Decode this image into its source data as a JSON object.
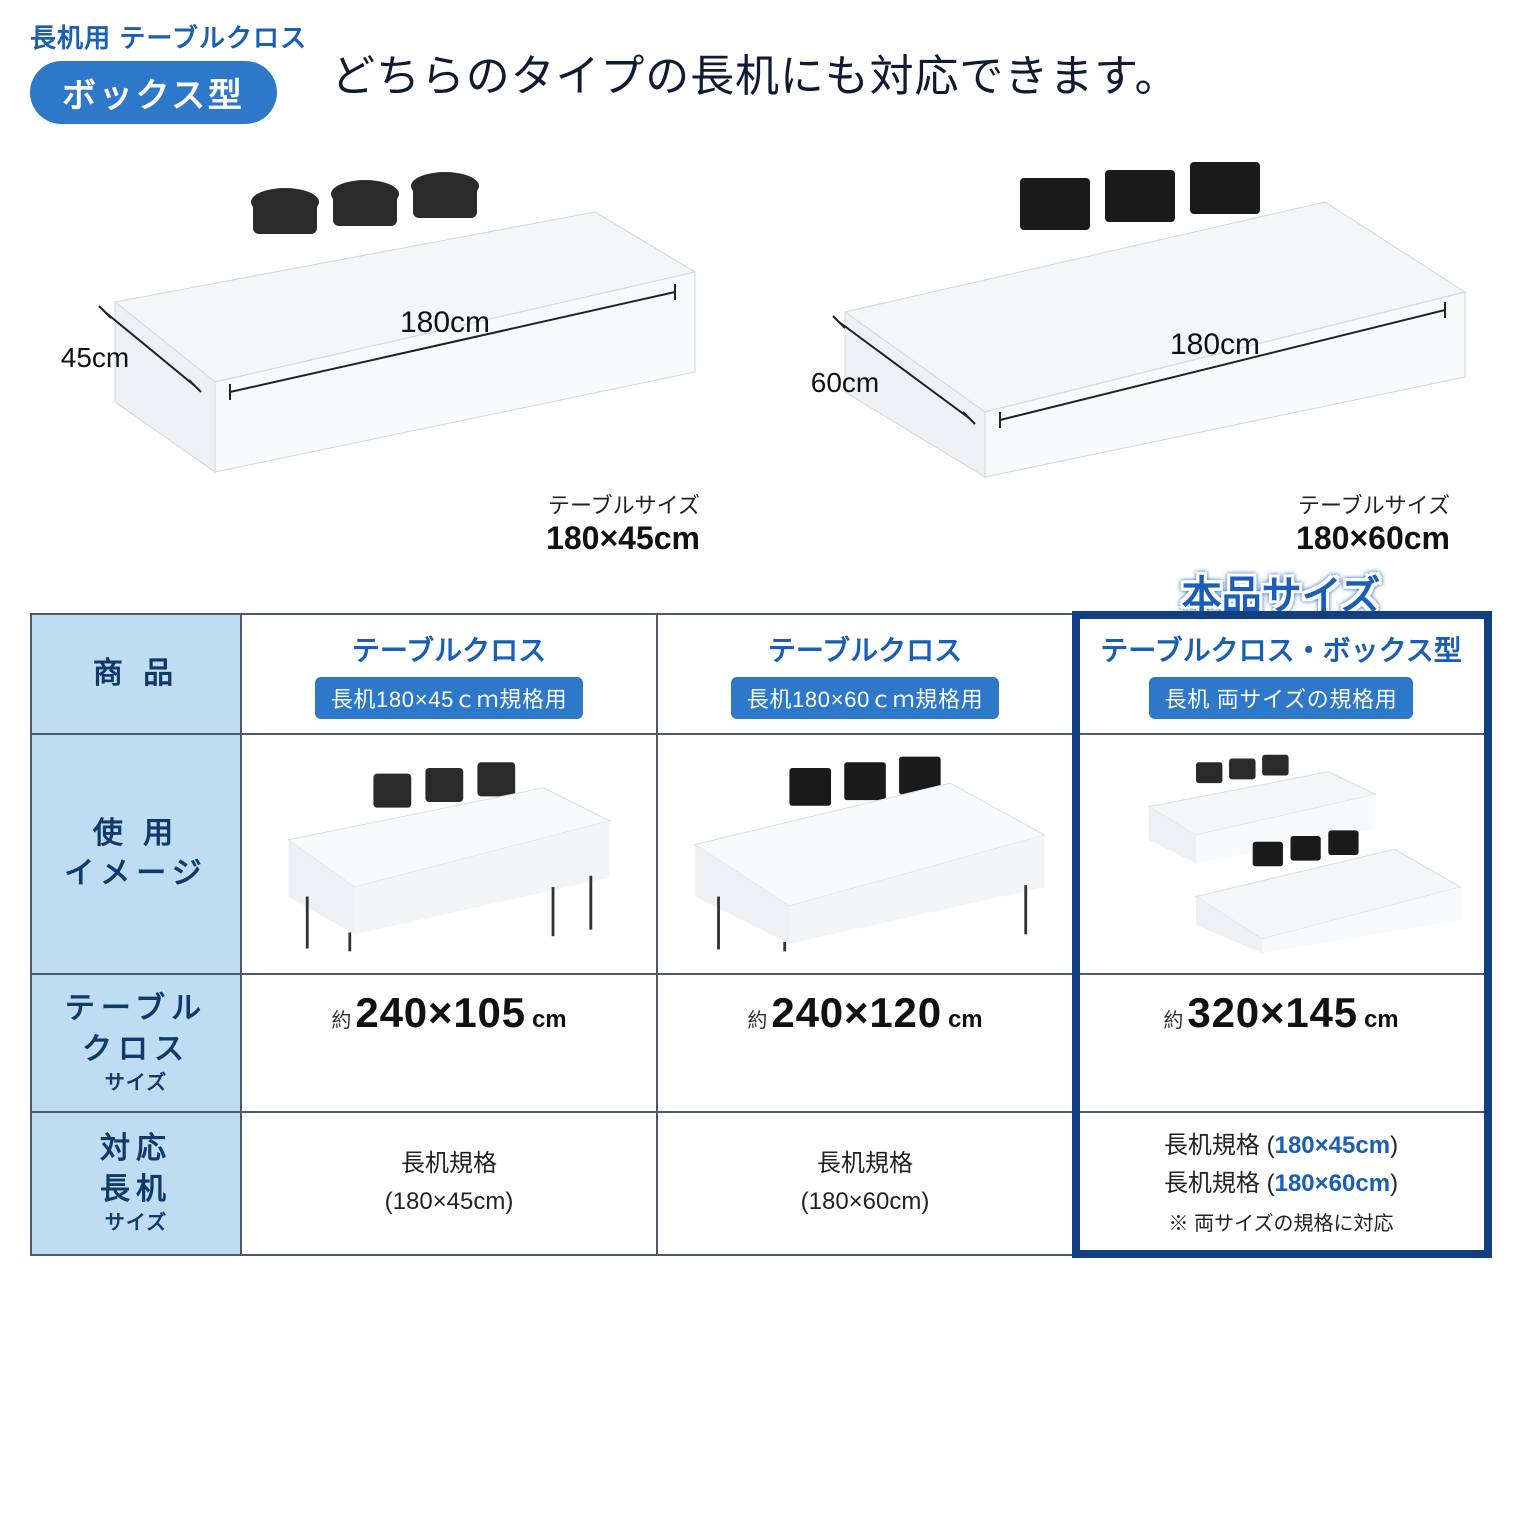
{
  "colors": {
    "accent": "#2d78c8",
    "accent_dark": "#1a5fb4",
    "border": "#4b5b6b",
    "row_head_bg": "#bedcf2",
    "highlight_border": "#123f82",
    "text": "#1a1a1a",
    "white": "#ffffff",
    "chair": "#2a2a2a",
    "table_top": "#f4f6f8",
    "table_shadow": "#dfe4e9"
  },
  "header": {
    "small_title": "長机用 テーブルクロス",
    "pill": "ボックス型",
    "headline": "どちらのタイプの長机にも対応できます。"
  },
  "hero": [
    {
      "width_label": "45cm",
      "length_label": "180cm",
      "caption_label": "テーブルサイズ",
      "caption_dim": "180×45cm"
    },
    {
      "width_label": "60cm",
      "length_label": "180cm",
      "caption_label": "テーブルサイズ",
      "caption_dim": "180×60cm"
    }
  ],
  "table": {
    "row_labels": {
      "product": "商 品",
      "usage_l1": "使 用",
      "usage_l2": "イメージ",
      "cloth_l1": "テーブル",
      "cloth_l2": "クロス",
      "cloth_l3": "サイズ",
      "compat_l1": "対応",
      "compat_l2": "長机",
      "compat_l3": "サイズ"
    },
    "highlight_badge": "本品サイズ",
    "columns": [
      {
        "head_top": "テーブルクロス",
        "head_spec": "長机180×45ｃｍ規格用",
        "size_approx": "約",
        "size_num": "240×105",
        "size_unit": "cm",
        "compat_line1": "長机規格",
        "compat_dim": "(180×45cm)",
        "compat_both": ""
      },
      {
        "head_top": "テーブルクロス",
        "head_spec": "長机180×60ｃｍ規格用",
        "size_approx": "約",
        "size_num": "240×120",
        "size_unit": "cm",
        "compat_line1": "長机規格",
        "compat_dim": "(180×60cm)",
        "compat_both": ""
      },
      {
        "head_top": "テーブルクロス・ボックス型",
        "head_spec": "長机 両サイズの規格用",
        "size_approx": "約",
        "size_num": "320×145",
        "size_unit": "cm",
        "compat_a_label": "長机規格 (",
        "compat_a_dim": "180×45cm",
        "compat_a_close": ")",
        "compat_b_label": "長机規格 (",
        "compat_b_dim": "180×60cm",
        "compat_b_close": ")",
        "compat_note": "※ 両サイズの規格に対応"
      }
    ]
  }
}
